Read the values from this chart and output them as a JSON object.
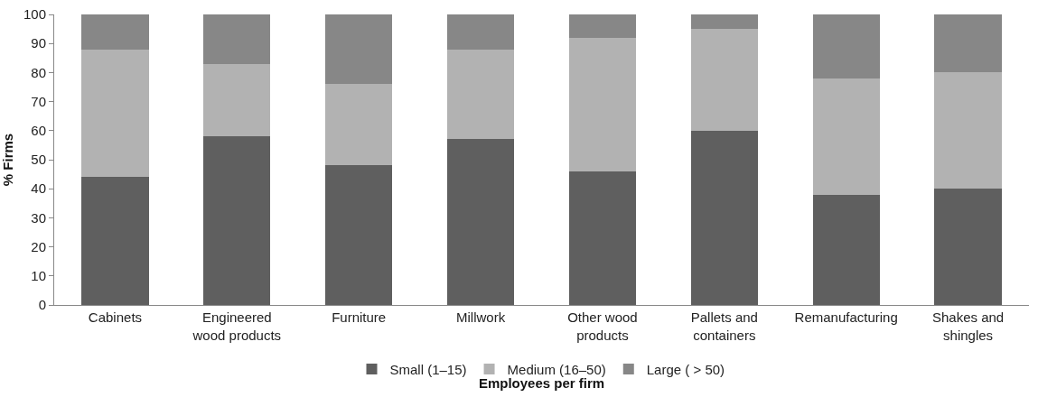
{
  "chart_data": {
    "type": "bar",
    "stacked": true,
    "xlabel": "Employees per firm",
    "ylabel": "% Firms",
    "categories": [
      "Cabinets",
      "Engineered wood products",
      "Furniture",
      "Millwork",
      "Other wood products",
      "Pallets and containers",
      "Remanufacturing",
      "Shakes and shingles"
    ],
    "series": [
      {
        "name": "Small (1–15)",
        "color": "#5f5f5f",
        "values": [
          44,
          58,
          48,
          57,
          46,
          60,
          38,
          40
        ]
      },
      {
        "name": "Medium (16–50)",
        "color": "#b2b2b2",
        "values": [
          44,
          25,
          28,
          31,
          46,
          35,
          40,
          40
        ]
      },
      {
        "name": "Large ( > 50)",
        "color": "#878787",
        "values": [
          12,
          17,
          24,
          12,
          8,
          5,
          22,
          20
        ]
      }
    ],
    "ylim": [
      0,
      100
    ],
    "yticks": [
      0,
      10,
      20,
      30,
      40,
      50,
      60,
      70,
      80,
      90,
      100
    ],
    "grid": false,
    "legend": "bottom"
  }
}
